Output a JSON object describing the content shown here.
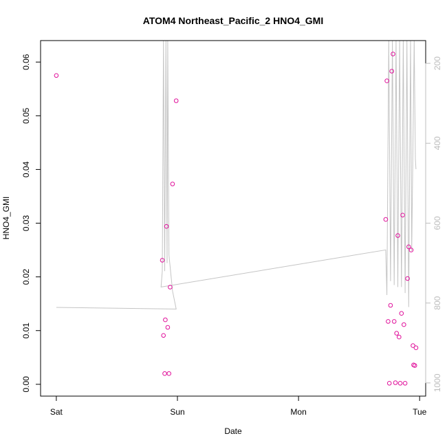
{
  "chart_data": {
    "type": "scatter",
    "title": "ATOM4 Northeast_Pacific_2 HNO4_GMI",
    "xlabel": "Date",
    "ylabel": "HNO4_GMI",
    "x_ticks": [
      {
        "x": 0,
        "label": "Sat"
      },
      {
        "x": 1,
        "label": "Sun"
      },
      {
        "x": 2,
        "label": "Mon"
      },
      {
        "x": 3,
        "label": "Tue"
      }
    ],
    "xlim": [
      -0.13,
      3.05
    ],
    "ylim": [
      -0.0022,
      0.064
    ],
    "y_ticks": [
      {
        "y": 0.0,
        "label": "0.00"
      },
      {
        "y": 0.01,
        "label": "0.01"
      },
      {
        "y": 0.02,
        "label": "0.02"
      },
      {
        "y": 0.03,
        "label": "0.03"
      },
      {
        "y": 0.04,
        "label": "0.04"
      },
      {
        "y": 0.05,
        "label": "0.05"
      },
      {
        "y": 0.06,
        "label": "0.06"
      }
    ],
    "y2lim": [
      1033,
      143
    ],
    "y2_ticks": [
      {
        "y": 200,
        "label": "200"
      },
      {
        "y": 400,
        "label": "400"
      },
      {
        "y": 600,
        "label": "600"
      },
      {
        "y": 800,
        "label": "800"
      },
      {
        "y": 1000,
        "label": "1000"
      }
    ],
    "point_color": "#e0109a",
    "line_color": "#c4c4c4",
    "series": [
      {
        "type": "points",
        "points": [
          [
            0.0,
            0.0575
          ],
          [
            0.875,
            0.0231
          ],
          [
            0.885,
            0.0091
          ],
          [
            0.895,
            0.002
          ],
          [
            0.9,
            0.012
          ],
          [
            0.91,
            0.0294
          ],
          [
            0.92,
            0.0106
          ],
          [
            0.93,
            0.002
          ],
          [
            0.94,
            0.0181
          ],
          [
            0.96,
            0.0373
          ],
          [
            0.99,
            0.0528
          ],
          [
            2.72,
            0.0307
          ],
          [
            2.73,
            0.0565
          ],
          [
            2.74,
            0.0117
          ],
          [
            2.75,
            0.0002
          ],
          [
            2.76,
            0.0147
          ],
          [
            2.77,
            0.0583
          ],
          [
            2.78,
            0.0615
          ],
          [
            2.79,
            0.0117
          ],
          [
            2.8,
            0.0003
          ],
          [
            2.81,
            0.0095
          ],
          [
            2.82,
            0.0277
          ],
          [
            2.83,
            0.0088
          ],
          [
            2.84,
            0.0002
          ],
          [
            2.85,
            0.0132
          ],
          [
            2.86,
            0.0315
          ],
          [
            2.87,
            0.0111
          ],
          [
            2.88,
            0.0002
          ],
          [
            2.9,
            0.0197
          ],
          [
            2.91,
            0.0256
          ],
          [
            2.93,
            0.025
          ],
          [
            2.945,
            0.0072
          ],
          [
            2.95,
            0.0036
          ],
          [
            2.96,
            0.0035
          ],
          [
            2.97,
            0.0068
          ]
        ]
      },
      {
        "type": "line",
        "axis": "right",
        "points": [
          [
            0.0,
            811
          ],
          [
            0.99,
            815
          ],
          [
            0.96,
            770
          ],
          [
            0.93,
            680
          ],
          [
            0.92,
            140
          ],
          [
            0.915,
            700
          ],
          [
            0.905,
            140
          ],
          [
            0.895,
            720
          ],
          [
            0.885,
            140
          ],
          [
            0.875,
            720
          ],
          [
            0.87,
            740
          ],
          [
            0.865,
            760
          ],
          [
            2.72,
            667
          ],
          [
            2.73,
            780
          ],
          [
            2.745,
            140
          ],
          [
            2.76,
            745
          ],
          [
            2.775,
            140
          ],
          [
            2.79,
            755
          ],
          [
            2.805,
            140
          ],
          [
            2.82,
            760
          ],
          [
            2.835,
            140
          ],
          [
            2.85,
            760
          ],
          [
            2.865,
            140
          ],
          [
            2.88,
            775
          ],
          [
            2.895,
            140
          ],
          [
            2.91,
            810
          ],
          [
            2.925,
            140
          ],
          [
            2.935,
            670
          ],
          [
            2.955,
            140
          ],
          [
            2.965,
            440
          ],
          [
            2.97,
            465
          ]
        ]
      }
    ]
  }
}
